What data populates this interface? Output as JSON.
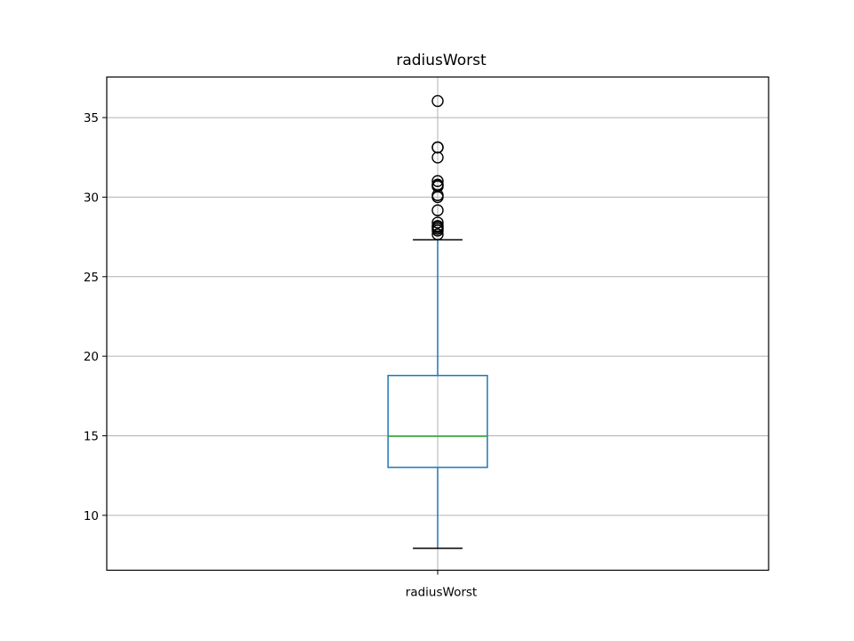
{
  "chart_data": {
    "type": "box",
    "title": "radiusWorst",
    "categories": [
      "radiusWorst"
    ],
    "xlabel": "",
    "ylabel": "",
    "ylim": [
      6.55,
      37.55
    ],
    "yticks": [
      10,
      15,
      20,
      25,
      30,
      35
    ],
    "grid": true,
    "colors": {
      "box": "#1f77b4",
      "median": "#2ca02c",
      "caps": "#000000",
      "fliers": "#000000"
    },
    "boxes": [
      {
        "name": "radiusWorst",
        "whisker_low": 7.93,
        "q1": 13.01,
        "median": 14.97,
        "q3": 18.79,
        "whisker_high": 27.32,
        "outliers": [
          27.66,
          27.9,
          28.01,
          28.11,
          28.19,
          28.4,
          29.17,
          30.0,
          30.12,
          30.67,
          30.75,
          30.79,
          31.01,
          32.49,
          33.12,
          33.13,
          36.04
        ]
      }
    ]
  }
}
